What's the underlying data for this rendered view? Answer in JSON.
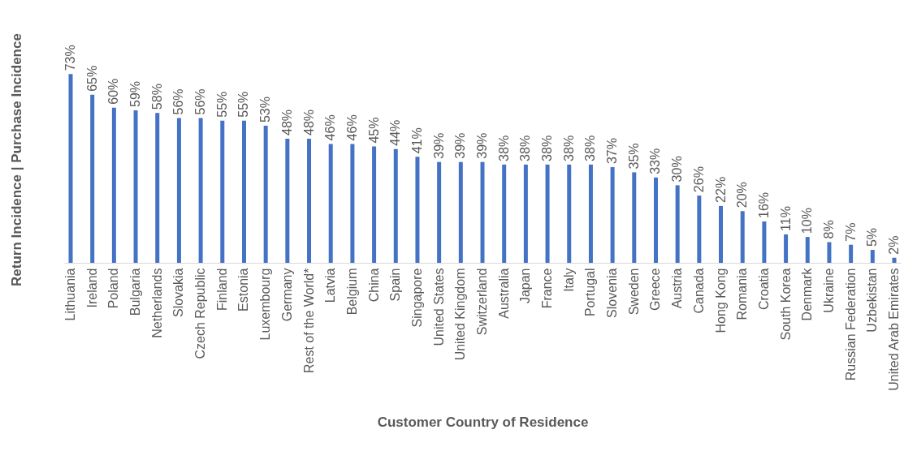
{
  "chart_data": {
    "type": "bar",
    "xlabel": "Customer Country of Residence",
    "ylabel": "Return Incidence | Purchase Incidence",
    "categories": [
      "Lithuania",
      "Ireland",
      "Poland",
      "Bulgaria",
      "Netherlands",
      "Slovakia",
      "Czech Republic",
      "Finland",
      "Estonia",
      "Luxembourg",
      "Germany",
      "Rest of the World*",
      "Latvia",
      "Belgium",
      "China",
      "Spain",
      "Singapore",
      "United States",
      "United Kingdom",
      "Switzerland",
      "Australia",
      "Japan",
      "France",
      "Italy",
      "Portugal",
      "Slovenia",
      "Sweden",
      "Greece",
      "Austria",
      "Canada",
      "Hong Kong",
      "Romania",
      "Croatia",
      "South Korea",
      "Denmark",
      "Ukraine",
      "Russian Federation",
      "Uzbekistan",
      "United Arab Emirates"
    ],
    "values": [
      73,
      65,
      60,
      59,
      58,
      56,
      56,
      55,
      55,
      53,
      48,
      48,
      46,
      46,
      45,
      44,
      41,
      39,
      39,
      39,
      38,
      38,
      38,
      38,
      38,
      37,
      35,
      33,
      30,
      26,
      22,
      20,
      16,
      11,
      10,
      8,
      7,
      5,
      2
    ],
    "value_labels": [
      "73%",
      "65%",
      "60%",
      "59%",
      "58%",
      "56%",
      "56%",
      "55%",
      "55%",
      "53%",
      "48%",
      "48%",
      "46%",
      "46%",
      "45%",
      "44%",
      "41%",
      "39%",
      "39%",
      "39%",
      "38%",
      "38%",
      "38%",
      "38%",
      "38%",
      "37%",
      "35%",
      "33%",
      "30%",
      "26%",
      "22%",
      "20%",
      "16%",
      "11%",
      "10%",
      "8%",
      "7%",
      "5%",
      "2%"
    ],
    "color": "#4472c4",
    "relative": false,
    "grid": false
  }
}
